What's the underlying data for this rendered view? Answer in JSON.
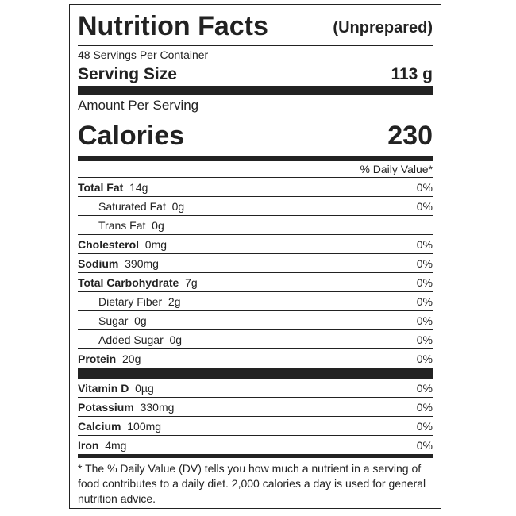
{
  "header": {
    "title": "Nutrition Facts",
    "subtitle": "(Unprepared)"
  },
  "servings": {
    "per_container": "48 Servings Per Container",
    "size_label": "Serving Size",
    "size_value": "113 g"
  },
  "calories": {
    "amount_label": "Amount Per Serving",
    "label": "Calories",
    "value": "230"
  },
  "daily_value_header": "% Daily Value*",
  "nutrients": [
    {
      "name": "Total Fat",
      "amount": "14g",
      "dv": "0%"
    },
    {
      "name": "Saturated Fat",
      "amount": "0g",
      "dv": "0%"
    },
    {
      "name": "Trans Fat",
      "amount": "0g"
    },
    {
      "name": "Cholesterol",
      "amount": "0mg",
      "dv": "0%"
    },
    {
      "name": "Sodium",
      "amount": "390mg",
      "dv": "0%"
    },
    {
      "name": "Total Carbohydrate",
      "amount": "7g",
      "dv": "0%"
    },
    {
      "name": "Dietary Fiber",
      "amount": "2g",
      "dv": "0%"
    },
    {
      "name": "Sugar",
      "amount": "0g",
      "dv": "0%"
    },
    {
      "name": "Added Sugar",
      "amount": "0g",
      "dv": "0%"
    },
    {
      "name": "Protein",
      "amount": "20g",
      "dv": "0%"
    }
  ],
  "vitamins": [
    {
      "name": "Vitamin D",
      "amount": "0µg",
      "dv": "0%"
    },
    {
      "name": "Potassium",
      "amount": "330mg",
      "dv": "0%"
    },
    {
      "name": "Calcium",
      "amount": "100mg",
      "dv": "0%"
    },
    {
      "name": "Iron",
      "amount": "4mg",
      "dv": "0%"
    }
  ],
  "footnote": "* The % Daily Value (DV) tells you how much a nutrient in a serving of food contributes to a daily diet. 2,000 calories a day is used for general nutrition advice."
}
